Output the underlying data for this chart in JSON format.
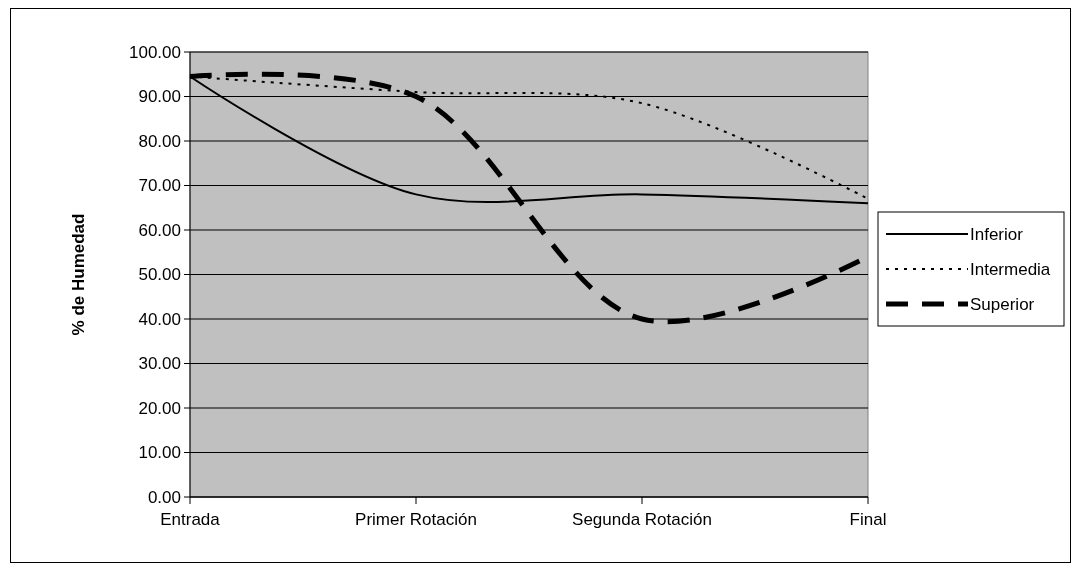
{
  "chart_data": {
    "type": "line",
    "ylabel": "% de Humedad",
    "categories": [
      "Entrada",
      "Primer Rotación",
      "Segunda Rotación",
      "Final"
    ],
    "series": [
      {
        "name": "Inferior",
        "color": "#000000",
        "line_style": "solid",
        "values": [
          94.5,
          68,
          68,
          66
        ]
      },
      {
        "name": "Intermedia",
        "color": "#000000",
        "line_style": "dotted",
        "values": [
          94.5,
          91,
          88.5,
          67
        ]
      },
      {
        "name": "Superior",
        "color": "#000000",
        "line_style": "dashed",
        "values": [
          94.5,
          90,
          40,
          54
        ]
      }
    ],
    "ylim": [
      0,
      100
    ],
    "yticks": [
      {
        "value": 0,
        "label": "0.00"
      },
      {
        "value": 10,
        "label": "10.00"
      },
      {
        "value": 20,
        "label": "20.00"
      },
      {
        "value": 30,
        "label": "30.00"
      },
      {
        "value": 40,
        "label": "40.00"
      },
      {
        "value": 50,
        "label": "50.00"
      },
      {
        "value": 60,
        "label": "60.00"
      },
      {
        "value": 70,
        "label": "70.00"
      },
      {
        "value": 80,
        "label": "80.00"
      },
      {
        "value": 90,
        "label": "90.00"
      },
      {
        "value": 100,
        "label": "100.00"
      }
    ],
    "grid": "y",
    "legend": "right",
    "marker": "none"
  }
}
